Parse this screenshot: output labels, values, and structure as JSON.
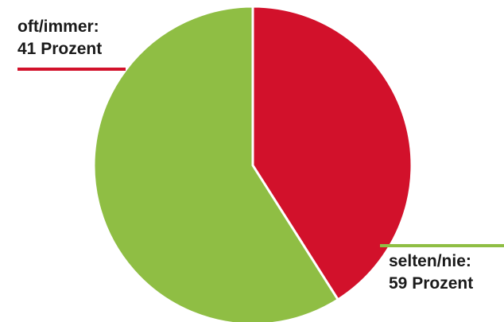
{
  "chart_data": {
    "type": "pie",
    "slices": [
      {
        "name": "oft/immer",
        "value": 41,
        "label_line1": "oft/immer:",
        "label_line2": "41 Prozent",
        "color": "#d2112b"
      },
      {
        "name": "selten/nie",
        "value": 59,
        "label_line1": "selten/nie:",
        "label_line2": "59 Prozent",
        "color": "#8fbe44"
      }
    ],
    "start_angle_deg": 0,
    "direction": "clockwise",
    "legend": "none",
    "leader_lines": true,
    "slice_separator_color": "#ffffff"
  }
}
